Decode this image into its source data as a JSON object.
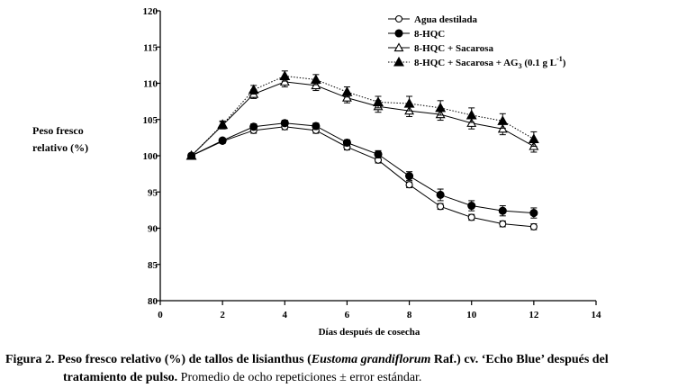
{
  "chart_data": {
    "type": "line",
    "xlabel": "Días después de cosecha",
    "ylabel": [
      "Peso fresco",
      "relativo (%)"
    ],
    "xlim": [
      0,
      14
    ],
    "ylim": [
      80,
      120
    ],
    "xticks": [
      0,
      2,
      4,
      6,
      8,
      10,
      12,
      14
    ],
    "yticks": [
      80,
      85,
      90,
      95,
      100,
      105,
      110,
      115,
      120
    ],
    "x": [
      1,
      2,
      3,
      4,
      5,
      6,
      7,
      8,
      9,
      10,
      11,
      12
    ],
    "series": [
      {
        "name": "Agua destilada",
        "marker": "circle-open",
        "values": [
          100,
          102,
          103.5,
          104,
          103.5,
          101.2,
          99.4,
          96.0,
          93.0,
          91.5,
          90.6,
          90.2
        ],
        "errors": [
          0.3,
          0.3,
          0.4,
          0.4,
          0.4,
          0.4,
          0.4,
          0.4,
          0.4,
          0.4,
          0.4,
          0.4
        ]
      },
      {
        "name": "8-HQC",
        "marker": "circle-filled",
        "values": [
          100,
          102.1,
          104,
          104.5,
          104.1,
          101.8,
          100.2,
          97.2,
          94.6,
          93.1,
          92.4,
          92.1
        ],
        "errors": [
          0.3,
          0.3,
          0.4,
          0.4,
          0.4,
          0.4,
          0.5,
          0.6,
          0.8,
          0.7,
          0.7,
          0.7
        ]
      },
      {
        "name": "8-HQC + Sacarosa",
        "marker": "triangle-open",
        "values": [
          100,
          104.2,
          108.5,
          110.2,
          109.7,
          108,
          106.8,
          106.2,
          105.7,
          104.5,
          103.7,
          101.3
        ],
        "errors": [
          0.3,
          0.5,
          0.6,
          0.7,
          0.7,
          0.7,
          0.8,
          0.8,
          0.8,
          0.8,
          0.8,
          0.8
        ]
      },
      {
        "name": "8-HQC + Sacarosa + AG3 (0.1 g L-1)",
        "marker": "triangle-filled",
        "values": [
          100,
          104.3,
          109.1,
          111,
          110.5,
          108.8,
          107.4,
          107.2,
          106.6,
          105.6,
          104.8,
          102.3
        ],
        "errors": [
          0.3,
          0.5,
          0.6,
          0.7,
          0.7,
          0.7,
          0.8,
          1.0,
          1.0,
          1.0,
          1.0,
          1.0
        ]
      }
    ],
    "legend": [
      {
        "label": "Agua destilada",
        "marker": "circle-open",
        "line": "solid"
      },
      {
        "label": "8-HQC",
        "marker": "circle-filled",
        "line": "solid"
      },
      {
        "label": "8-HQC + Sacarosa",
        "marker": "triangle-open",
        "line": "solid"
      },
      {
        "label": "8-HQC + Sacarosa  +  AG",
        "sub": "3",
        "tail": " (0.1 g L",
        "sup": "-1",
        "end": ")",
        "marker": "triangle-filled",
        "line": "dotted"
      }
    ],
    "legend_position": "top-right"
  },
  "caption": {
    "line1_bold_a": "Figura 2. Peso fresco relativo (%) de tallos de lisianthus (",
    "line1_italic": "Eustoma  grandiflorum",
    "line1_bold_b": " Raf.) cv. ‘Echo Blue’ después del",
    "line2_bold": "tratamiento de pulso.",
    "line2_normal": " Promedio de ocho repeticiones ± error estándar."
  }
}
